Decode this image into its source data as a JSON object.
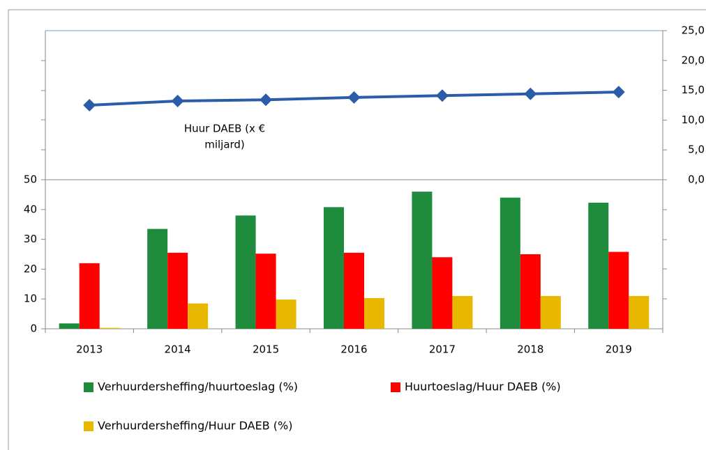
{
  "chart_data": {
    "type": "bar_line",
    "categories": [
      "2013",
      "2014",
      "2015",
      "2016",
      "2017",
      "2018",
      "2019"
    ],
    "series": [
      {
        "name": "Verhuurdersheffing/huurtoeslag (%)",
        "type": "bar",
        "color": "#1e8c3c",
        "values": [
          1.8,
          33.5,
          38,
          40.8,
          46,
          44,
          42.3
        ]
      },
      {
        "name": "Huurtoeslag/Huur DAEB (%)",
        "type": "bar",
        "color": "#ff0000",
        "values": [
          22,
          25.5,
          25.2,
          25.5,
          24,
          25,
          25.8
        ]
      },
      {
        "name": "Verhuurdersheffing/Huur DAEB (%)",
        "type": "bar",
        "color": "#e8b800",
        "values": [
          0.3,
          8.5,
          9.8,
          10.3,
          11,
          11,
          11
        ]
      },
      {
        "type": "line",
        "axis": "y2",
        "color": "#2a5caa",
        "values": [
          12.5,
          13.2,
          13.4,
          13.8,
          14.1,
          14.4,
          14.7
        ]
      }
    ],
    "annotation": [
      "Huur DAEB  (x  €",
      "miljard)"
    ],
    "ylim": [
      0,
      50
    ],
    "yticks": [
      0,
      10,
      20,
      30,
      40,
      50
    ],
    "y2lim": [
      0,
      25
    ],
    "y2ticks": [
      {
        "value": 0,
        "label": "0,0"
      },
      {
        "value": 5,
        "label": "5,0"
      },
      {
        "value": 10,
        "label": "10,0"
      },
      {
        "value": 15,
        "label": "15,0"
      },
      {
        "value": 20,
        "label": "20,0"
      },
      {
        "value": 25,
        "label": "25,0"
      }
    ]
  }
}
